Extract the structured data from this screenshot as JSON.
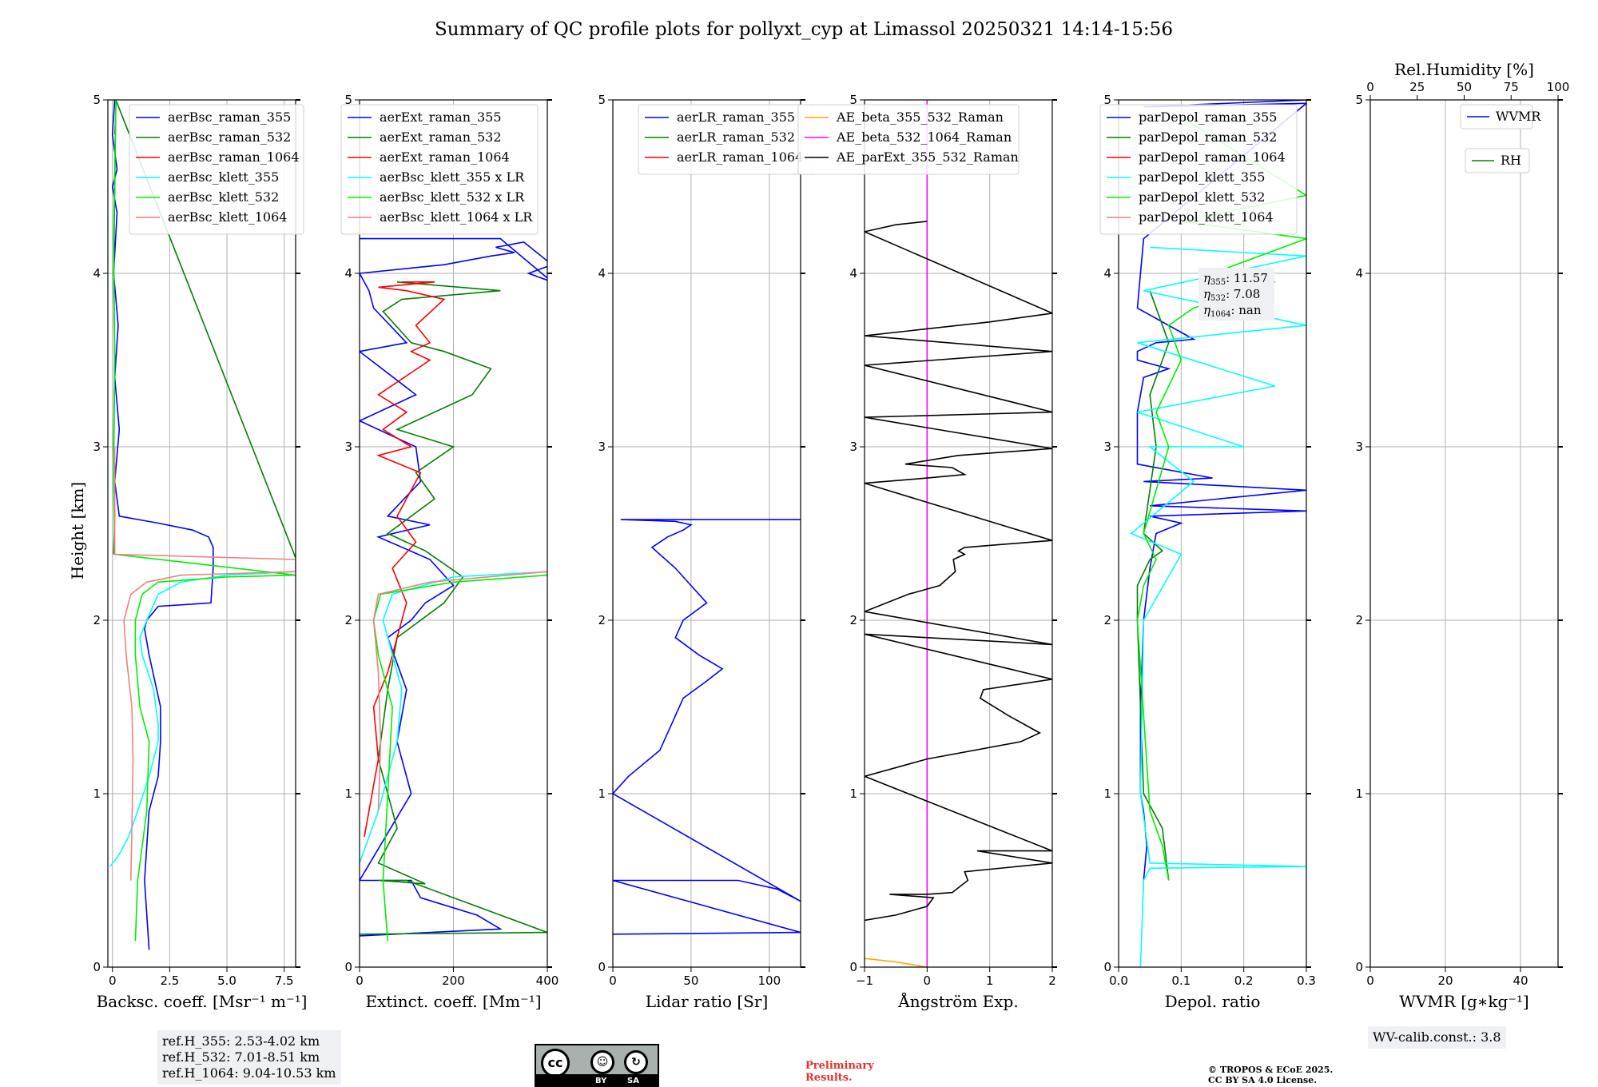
{
  "figure": {
    "title": "Summary of QC profile plots for pollyxt_cyp at Limassol 20250321 14:14-15:56",
    "ylabel": "Height [km]"
  },
  "chart_data": [
    {
      "type": "line",
      "xlabel": "Backsc. coeff. [Msr⁻¹ m⁻¹]",
      "xlim": [
        -0.2,
        8
      ],
      "ylim": [
        0,
        5
      ],
      "xticks": [
        0,
        2.5,
        5.0,
        7.5
      ],
      "xticklabels": [
        "0",
        "2.5",
        "5.0",
        "7.5"
      ],
      "yticks": [
        0,
        1,
        2,
        3,
        4,
        5
      ],
      "grid": true,
      "legend": "top-right",
      "series": [
        {
          "name": "aerBsc_raman_355",
          "color": "#0000ff",
          "x": [
            1.6,
            1.4,
            1.4,
            1.6,
            2.0,
            2.1,
            2.1,
            1.6,
            1.4,
            1.5,
            2.0,
            4.3,
            4.4,
            4.4,
            4.2,
            3.5,
            2.0,
            0.3,
            0.1,
            0.3,
            0.1,
            0.25,
            0.05,
            0.2,
            0.0,
            0.2,
            0.0,
            0.1
          ],
          "y": [
            0.1,
            0.5,
            0.5,
            0.9,
            1.1,
            1.3,
            1.5,
            1.8,
            1.95,
            2.0,
            2.08,
            2.1,
            2.3,
            2.42,
            2.48,
            2.52,
            2.56,
            2.6,
            2.8,
            3.1,
            3.4,
            3.7,
            4.0,
            4.35,
            4.5,
            4.6,
            4.8,
            5.0
          ]
        },
        {
          "name": "aerBsc_raman_532",
          "color": "#008000",
          "x": [
            0.05,
            0.1,
            0.05,
            0.1,
            0.05,
            0.1,
            0.15,
            8.0,
            8.0
          ],
          "y": [
            2.38,
            2.6,
            3.0,
            3.5,
            4.0,
            4.5,
            5.0,
            2.36,
            2.36
          ]
        },
        {
          "name": "aerBsc_raman_1064",
          "color": "#ff0000",
          "x": [
            0.1,
            0.12
          ],
          "y": [
            4.8,
            4.85
          ]
        },
        {
          "name": "aerBsc_klett_355",
          "color": "#00ffff",
          "x": [
            -0.1,
            0.3,
            0.7,
            1.1,
            1.6,
            2.0,
            2.0,
            1.8,
            1.3,
            1.2,
            1.5,
            2.0,
            3.0,
            5.0,
            8.0
          ],
          "y": [
            0.58,
            0.65,
            0.75,
            0.9,
            1.1,
            1.3,
            1.4,
            1.6,
            1.8,
            1.9,
            2.0,
            2.15,
            2.22,
            2.26,
            2.28
          ]
        },
        {
          "name": "aerBsc_klett_532",
          "color": "#00ee00",
          "x": [
            1.0,
            1.1,
            1.5,
            1.6,
            1.2,
            1.0,
            1.0,
            1.3,
            2.0,
            5.0,
            8.0,
            0.1,
            0.05,
            0.1,
            0.05,
            0.15
          ],
          "y": [
            0.15,
            0.5,
            0.9,
            1.3,
            1.5,
            1.8,
            2.0,
            2.15,
            2.22,
            2.25,
            2.26,
            2.38,
            2.8,
            3.5,
            4.2,
            5.0
          ]
        },
        {
          "name": "aerBsc_klett_1064",
          "color": "#f08080",
          "x": [
            0.8,
            0.85,
            0.9,
            0.85,
            0.6,
            0.5,
            0.8,
            1.5,
            3.0,
            8.0,
            8.0,
            0.1,
            0.1
          ],
          "y": [
            0.5,
            0.8,
            1.2,
            1.5,
            1.8,
            2.0,
            2.15,
            2.22,
            2.26,
            2.28,
            2.35,
            2.38,
            3.0
          ]
        }
      ]
    },
    {
      "type": "line",
      "xlabel": "Extinct. coeff. [Mm⁻¹]",
      "xlim": [
        0,
        400
      ],
      "ylim": [
        0,
        5
      ],
      "xticks": [
        0,
        200,
        400
      ],
      "xticklabels": [
        "0",
        "200",
        "400"
      ],
      "yticks": [
        0,
        1,
        2,
        3,
        4,
        5
      ],
      "grid": true,
      "legend": "top-right",
      "series": [
        {
          "name": "aerExt_raman_355",
          "color": "#0000ff",
          "x": [
            0,
            300,
            250,
            130,
            110,
            0,
            110,
            80,
            100,
            60,
            110,
            140,
            200,
            150,
            40,
            150,
            60,
            130,
            120,
            0,
            120,
            0,
            100,
            30,
            20,
            0,
            180,
            280,
            330,
            290,
            350,
            410,
            360,
            410,
            300,
            0
          ],
          "y": [
            0.18,
            0.22,
            0.3,
            0.4,
            0.5,
            0.5,
            1.0,
            1.3,
            1.6,
            1.9,
            2.0,
            2.1,
            2.2,
            2.35,
            2.48,
            2.55,
            2.6,
            2.8,
            3.0,
            3.15,
            3.3,
            3.55,
            3.6,
            3.8,
            3.9,
            4.0,
            4.05,
            4.1,
            4.12,
            4.15,
            4.18,
            4.05,
            4.0,
            3.95,
            4.2,
            4.2
          ]
        },
        {
          "name": "aerExt_raman_532",
          "color": "#008000",
          "x": [
            0,
            400,
            100,
            40,
            140,
            40,
            80,
            40,
            60,
            80,
            180,
            220,
            140,
            60,
            160,
            120,
            200,
            80,
            240,
            280,
            180,
            110,
            50,
            90,
            300,
            80
          ],
          "y": [
            0.19,
            0.2,
            0.5,
            0.5,
            0.48,
            0.6,
            0.8,
            1.2,
            1.6,
            1.9,
            2.1,
            2.25,
            2.4,
            2.5,
            2.7,
            2.85,
            3.0,
            3.1,
            3.3,
            3.45,
            3.55,
            3.6,
            3.78,
            3.85,
            3.9,
            3.95
          ]
        },
        {
          "name": "aerExt_raman_1064",
          "color": "#ff0000",
          "x": [
            10,
            20,
            40,
            30,
            60,
            80,
            100,
            70,
            120,
            80,
            130,
            40,
            110,
            50,
            100,
            40,
            150,
            110,
            150,
            120,
            180,
            100,
            40,
            160,
            90
          ],
          "y": [
            0.75,
            0.9,
            1.2,
            1.5,
            1.7,
            1.9,
            2.1,
            2.3,
            2.45,
            2.6,
            2.85,
            2.95,
            3.0,
            3.1,
            3.2,
            3.3,
            3.5,
            3.55,
            3.6,
            3.7,
            3.85,
            3.9,
            3.92,
            3.95,
            3.95
          ]
        },
        {
          "name": "aerBsc_klett_355 x LR",
          "color": "#00ffff",
          "x": [
            0,
            40,
            80,
            90,
            60,
            50,
            70,
            200,
            400
          ],
          "y": [
            0.6,
            0.9,
            1.3,
            1.6,
            1.9,
            2.0,
            2.15,
            2.25,
            2.28
          ]
        },
        {
          "name": "aerBsc_klett_532 x LR",
          "color": "#00ee00",
          "x": [
            60,
            50,
            60,
            70,
            40,
            30,
            45,
            200,
            400
          ],
          "y": [
            0.15,
            0.5,
            1.0,
            1.5,
            1.8,
            2.0,
            2.15,
            2.22,
            2.26
          ]
        },
        {
          "name": "aerBsc_klett_1064 x LR",
          "color": "#f08080",
          "x": [
            40,
            45,
            40,
            30,
            40,
            150,
            400
          ],
          "y": [
            0.9,
            1.3,
            1.7,
            2.0,
            2.15,
            2.22,
            2.28
          ]
        }
      ]
    },
    {
      "type": "line",
      "xlabel": "Lidar ratio [Sr]",
      "xlim": [
        0,
        120
      ],
      "ylim": [
        0,
        5
      ],
      "xticks": [
        0,
        50,
        100
      ],
      "xticklabels": [
        "0",
        "50",
        "100"
      ],
      "yticks": [
        0,
        1,
        2,
        3,
        4,
        5
      ],
      "grid": true,
      "legend": "top-right",
      "series": [
        {
          "name": "aerLR_raman_355",
          "color": "#0000ff",
          "x": [
            0,
            120,
            0,
            80,
            105,
            120,
            0,
            10,
            30,
            40,
            45,
            60,
            70,
            55,
            40,
            45,
            60,
            50,
            40,
            25,
            35,
            45,
            50,
            45,
            40,
            5,
            10,
            120
          ],
          "y": [
            0.19,
            0.2,
            0.5,
            0.5,
            0.45,
            0.38,
            1.0,
            1.1,
            1.25,
            1.45,
            1.55,
            1.65,
            1.72,
            1.8,
            1.9,
            2.0,
            2.1,
            2.2,
            2.3,
            2.42,
            2.48,
            2.52,
            2.55,
            2.56,
            2.57,
            2.58,
            2.58,
            2.58
          ]
        },
        {
          "name": "aerLR_raman_532",
          "color": "#008000",
          "x": [],
          "y": []
        },
        {
          "name": "aerLR_raman_1064",
          "color": "#ff0000",
          "x": [],
          "y": []
        }
      ]
    },
    {
      "type": "line",
      "xlabel": "Ångström Exp.",
      "xlim": [
        -1,
        2
      ],
      "ylim": [
        0,
        5
      ],
      "xticks": [
        -1,
        0,
        1,
        2
      ],
      "xticklabels": [
        "−1",
        "0",
        "1",
        "2"
      ],
      "yticks": [
        0,
        1,
        2,
        3,
        4,
        5
      ],
      "grid": true,
      "legend": "top-right",
      "series": [
        {
          "name": "AE_beta_355_532_Raman",
          "color": "#ffa500",
          "x": [
            -1.0,
            -0.5,
            0.0
          ],
          "y": [
            0.05,
            0.03,
            0.0
          ]
        },
        {
          "name": "AE_beta_532_1064_Raman",
          "color": "#ff00ff",
          "x": [
            0.0,
            0.0
          ],
          "y": [
            0.0,
            5.0
          ]
        },
        {
          "name": "AE_parExt_355_532_Raman",
          "color": "#000000",
          "x": [
            -1,
            -0.5,
            0.0,
            0.1,
            -0.6,
            0.0,
            0.4,
            0.65,
            0.6,
            2.0,
            0.8,
            2.0,
            -1,
            0.0,
            1.5,
            1.8,
            1.3,
            0.85,
            0.9,
            2.0,
            -1,
            2.0,
            -1,
            -0.3,
            0.2,
            0.45,
            0.42,
            0.6,
            0.5,
            0.6,
            2.0,
            -1,
            0.0,
            0.6,
            0.4,
            -0.35,
            0.5,
            2.0,
            -1,
            2.0,
            -1,
            2.0,
            -1,
            1.0,
            2.0,
            -1,
            -0.5,
            0.0
          ],
          "y": [
            0.27,
            0.3,
            0.35,
            0.4,
            0.42,
            0.42,
            0.43,
            0.5,
            0.55,
            0.6,
            0.67,
            0.67,
            1.1,
            1.2,
            1.3,
            1.35,
            1.45,
            1.55,
            1.6,
            1.66,
            1.92,
            1.86,
            2.05,
            2.15,
            2.2,
            2.28,
            2.35,
            2.38,
            2.4,
            2.42,
            2.46,
            2.79,
            2.82,
            2.84,
            2.88,
            2.9,
            2.95,
            2.99,
            3.17,
            3.2,
            3.47,
            3.55,
            3.64,
            3.72,
            3.77,
            4.24,
            4.28,
            4.3
          ]
        }
      ]
    },
    {
      "type": "line",
      "xlabel": "Depol. ratio",
      "xlim": [
        0.0,
        0.3
      ],
      "ylim": [
        0,
        5
      ],
      "xticks": [
        0.0,
        0.1,
        0.2,
        0.3
      ],
      "xticklabels": [
        "0.0",
        "0.1",
        "0.2",
        "0.3"
      ],
      "yticks": [
        0,
        1,
        2,
        3,
        4,
        5
      ],
      "grid": true,
      "legend": "top-right",
      "annotation": {
        "eta355": "11.57",
        "eta532": "7.08",
        "eta1064": "nan"
      },
      "series": [
        {
          "name": "parDepol_raman_355",
          "color": "#0000ff",
          "x": [
            0.04,
            0.045,
            0.04,
            0.035,
            0.035,
            0.04,
            0.05,
            0.06,
            0.1,
            0.05,
            0.3,
            0.05,
            0.3,
            0.04,
            0.15,
            0.03,
            0.03,
            0.04,
            0.08,
            0.03,
            0.03,
            0.06,
            0.12,
            0.03,
            0.04,
            0.3,
            0.04,
            0.3
          ],
          "y": [
            0.5,
            0.7,
            0.9,
            1.0,
            1.5,
            2.0,
            2.3,
            2.5,
            2.56,
            2.6,
            2.63,
            2.66,
            2.75,
            2.8,
            2.82,
            2.9,
            3.2,
            3.4,
            3.45,
            3.5,
            3.55,
            3.6,
            3.62,
            3.8,
            4.2,
            4.98,
            4.96,
            5.0
          ]
        },
        {
          "name": "parDepol_raman_532",
          "color": "#008000",
          "x": [
            0.08,
            0.07,
            0.04,
            0.03,
            0.03,
            0.05,
            0.07,
            0.04,
            0.06,
            0.05,
            0.08,
            0.05
          ],
          "y": [
            0.5,
            0.8,
            1.0,
            2.0,
            2.2,
            2.35,
            2.4,
            2.5,
            3.0,
            3.3,
            3.6,
            3.9
          ]
        },
        {
          "name": "parDepol_raman_1064",
          "color": "#ff0000",
          "x": [],
          "y": []
        },
        {
          "name": "parDepol_klett_355",
          "color": "#00ffff",
          "x": [
            0.035,
            0.04,
            0.05,
            0.3,
            0.05,
            0.035,
            0.04,
            0.1,
            0.02,
            0.12,
            0.05,
            0.2,
            0.03,
            0.25,
            0.03,
            0.3,
            0.04,
            0.3,
            0.05
          ],
          "y": [
            0.0,
            0.5,
            0.57,
            0.58,
            0.6,
            1.0,
            2.0,
            2.38,
            2.5,
            2.8,
            3.0,
            3.0,
            3.2,
            3.35,
            3.6,
            3.7,
            3.9,
            4.1,
            4.15
          ]
        },
        {
          "name": "parDepol_klett_532",
          "color": "#00ee00",
          "x": [
            0.08,
            0.07,
            0.05,
            0.03,
            0.04,
            0.06,
            0.04,
            0.08,
            0.06,
            0.1,
            0.08,
            0.12,
            0.2,
            0.25,
            0.15,
            0.3,
            0.1,
            0.3,
            0.1
          ],
          "y": [
            0.5,
            0.7,
            0.9,
            2.0,
            2.2,
            2.35,
            2.5,
            3.0,
            3.2,
            3.5,
            3.7,
            3.8,
            3.9,
            3.95,
            4.0,
            4.2,
            4.3,
            4.45,
            4.9
          ]
        },
        {
          "name": "parDepol_klett_1064",
          "color": "#f08080",
          "x": [],
          "y": []
        }
      ]
    },
    {
      "type": "line",
      "xlabel": "WVMR [g∗kg⁻¹]",
      "x2label": "Rel.Humidity [%]",
      "xlim": [
        0,
        50
      ],
      "x2lim": [
        0,
        100
      ],
      "ylim": [
        0,
        5
      ],
      "xticks": [
        0,
        20,
        40
      ],
      "xticklabels": [
        "0",
        "20",
        "40"
      ],
      "x2ticks": [
        0,
        25,
        50,
        75,
        100
      ],
      "x2ticklabels": [
        "0",
        "25",
        "50",
        "75",
        "100"
      ],
      "yticks": [
        0,
        1,
        2,
        3,
        4,
        5
      ],
      "grid": true,
      "legend": "top-right",
      "series": [
        {
          "name": "WVMR",
          "color": "#0000ff",
          "x": [],
          "y": []
        },
        {
          "name": "RH",
          "color": "#008000",
          "x": [],
          "y": []
        }
      ]
    }
  ],
  "refbox": {
    "lines": [
      "ref.H_355: 2.53-4.02 km",
      "ref.H_532: 7.01-8.51 km",
      "ref.H_1064: 9.04-10.53 km"
    ]
  },
  "wvcalib": {
    "text": "WV-calib.const.: 3.8"
  },
  "license_badge": {
    "by": "BY",
    "sa": "SA",
    "cc": "cc"
  },
  "preliminary": {
    "line1": "Preliminary",
    "line2": "Results."
  },
  "copyright": {
    "line1": "© TROPOS & ECoE 2025.",
    "line2": "CC BY SA 4.0 License."
  }
}
